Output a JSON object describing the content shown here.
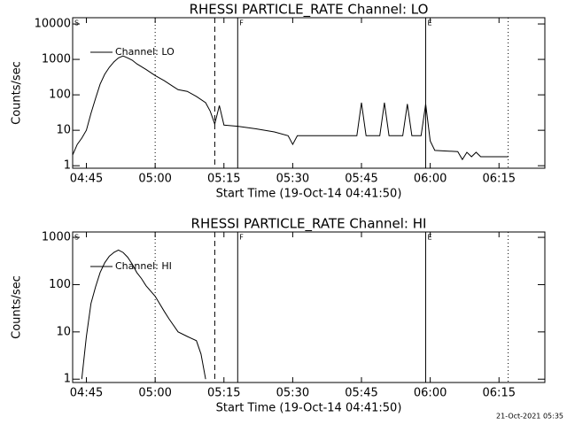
{
  "chart_data": [
    {
      "type": "line",
      "title": "RHESSI PARTICLE_RATE Channel: LO",
      "xlabel": "Start Time (19-Oct-14 04:41:50)",
      "ylabel": "Counts/sec",
      "log_y": true,
      "legend": "upper-left",
      "xlim": [
        "04:42",
        "06:25"
      ],
      "xticks": [
        "04:45",
        "05:00",
        "05:15",
        "05:30",
        "05:45",
        "06:00",
        "06:15"
      ],
      "ylim": [
        0.85,
        15000
      ],
      "yticks": [
        1,
        10,
        100,
        1000,
        10000
      ],
      "markers": [
        {
          "x": "04:42",
          "label": "S"
        },
        {
          "x": "05:00",
          "style": "dotted"
        },
        {
          "x": "05:13",
          "style": "dashed"
        },
        {
          "x": "05:18",
          "label": "F",
          "style": "solid"
        },
        {
          "x": "05:59",
          "label": "E",
          "style": "solid"
        },
        {
          "x": "06:17",
          "style": "dotted"
        }
      ],
      "x": [
        "04:42",
        "04:43",
        "04:44",
        "04:45",
        "04:46",
        "04:47",
        "04:48",
        "04:49",
        "04:50",
        "04:51",
        "04:52",
        "04:53",
        "04:54",
        "04:55",
        "04:56",
        "04:58",
        "05:00",
        "05:02",
        "05:04",
        "05:05",
        "05:07",
        "05:09",
        "05:11",
        "05:12",
        "05:13",
        "05:14",
        "05:15",
        "05:18",
        "05:22",
        "05:26",
        "05:29",
        "05:30",
        "05:31",
        "05:35",
        "05:40",
        "05:44",
        "05:45",
        "05:46",
        "05:49",
        "05:50",
        "05:51",
        "05:54",
        "05:55",
        "05:56",
        "05:58",
        "05:59",
        "06:00",
        "06:01",
        "06:06",
        "06:07",
        "06:08",
        "06:09",
        "06:10",
        "06:11",
        "06:17"
      ],
      "series": [
        {
          "name": "Channel: LO",
          "color": "#000000",
          "values": [
            2,
            4,
            6,
            10,
            30,
            80,
            200,
            380,
            600,
            850,
            1100,
            1250,
            1100,
            950,
            750,
            520,
            350,
            250,
            170,
            140,
            125,
            90,
            60,
            35,
            15,
            50,
            14,
            13,
            11,
            9,
            7,
            4,
            7,
            7,
            7,
            7,
            60,
            7,
            7,
            60,
            7,
            7,
            55,
            7,
            7,
            55,
            5,
            2.7,
            2.5,
            1.5,
            2.4,
            1.8,
            2.4,
            1.8,
            1.8
          ]
        }
      ]
    },
    {
      "type": "line",
      "title": "RHESSI PARTICLE_RATE Channel: HI",
      "xlabel": "Start Time (19-Oct-14 04:41:50)",
      "ylabel": "Counts/sec",
      "log_y": true,
      "legend": "upper-left",
      "xlim": [
        "04:42",
        "06:25"
      ],
      "xticks": [
        "04:45",
        "05:00",
        "05:15",
        "05:30",
        "05:45",
        "06:00",
        "06:15"
      ],
      "ylim": [
        0.85,
        1300
      ],
      "yticks": [
        1,
        10,
        100,
        1000
      ],
      "markers": [
        {
          "x": "04:42",
          "label": "S"
        },
        {
          "x": "05:00",
          "style": "dotted"
        },
        {
          "x": "05:13",
          "style": "dashed"
        },
        {
          "x": "05:18",
          "label": "F",
          "style": "solid"
        },
        {
          "x": "05:59",
          "label": "E",
          "style": "solid"
        },
        {
          "x": "06:17",
          "style": "dotted"
        }
      ],
      "x": [
        "04:44",
        "04:45",
        "04:46",
        "04:47",
        "04:48",
        "04:49",
        "04:50",
        "04:51",
        "04:52",
        "04:53",
        "04:54",
        "04:55",
        "04:56",
        "04:57",
        "04:58",
        "05:00",
        "05:02",
        "05:03",
        "05:05",
        "05:07",
        "05:09",
        "05:10",
        "05:11"
      ],
      "series": [
        {
          "name": "Channel: HI",
          "color": "#000000",
          "values": [
            1,
            8,
            40,
            90,
            180,
            290,
            400,
            480,
            540,
            480,
            380,
            270,
            180,
            135,
            95,
            57,
            27,
            19,
            10,
            8,
            6.5,
            3.4,
            1
          ]
        }
      ]
    }
  ],
  "footer": "21-Oct-2021 05:35"
}
